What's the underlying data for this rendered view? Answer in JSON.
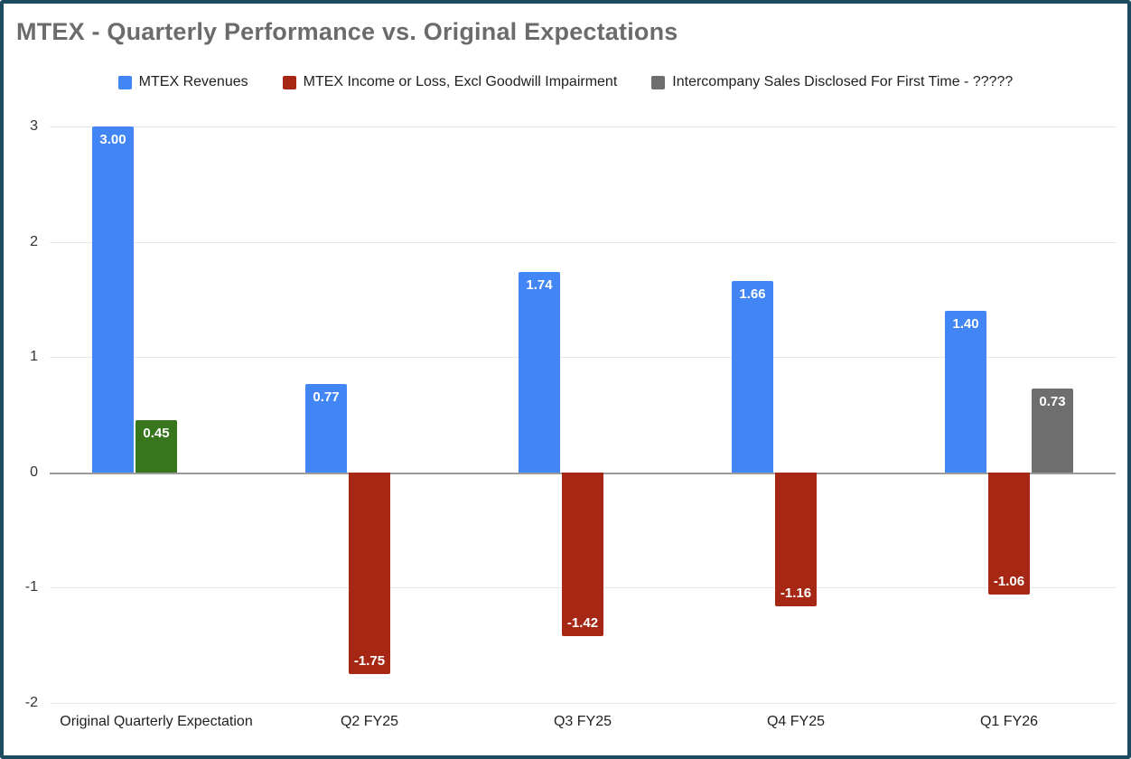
{
  "chart_data": {
    "type": "bar",
    "title": "MTEX - Quarterly Performance vs. Original Expectations",
    "categories": [
      "Original Quarterly Expectation",
      "Q2 FY25",
      "Q3 FY25",
      "Q4 FY25",
      "Q1 FY26"
    ],
    "series": [
      {
        "key": "revenues",
        "name": "MTEX Revenues",
        "color": "#4285F4",
        "values": [
          3.0,
          0.77,
          1.74,
          1.66,
          1.4
        ]
      },
      {
        "key": "income",
        "name": "MTEX Income or Loss, Excl Goodwill Impairment",
        "color": "#A52714",
        "values": [
          0.45,
          -1.75,
          -1.42,
          -1.16,
          -1.06
        ],
        "point_colors": [
          "#38761D",
          null,
          null,
          null,
          null
        ]
      },
      {
        "key": "intercompany",
        "name": "Intercompany Sales Disclosed For First Time - ?????",
        "color": "#6E6E6E",
        "values": [
          null,
          null,
          null,
          null,
          0.73
        ]
      }
    ],
    "ylim": [
      -2,
      3
    ],
    "y_ticks": [
      3,
      2,
      1,
      0,
      -1,
      -2
    ],
    "grid": true,
    "legend_position": "top",
    "data_labels": true,
    "data_label_format": "0.00",
    "xlabel": "",
    "ylabel": ""
  },
  "styles": {
    "frame_border_color": "#1C4A5F",
    "background": "#FFFFFF",
    "title_color": "#6B6B6B",
    "grid_color": "#E6E6E6",
    "zero_line_color": "#9B9B9B",
    "axis_text_color": "#333333",
    "legend_text_color": "#212121",
    "bar_label_color": "#FFFFFF"
  }
}
